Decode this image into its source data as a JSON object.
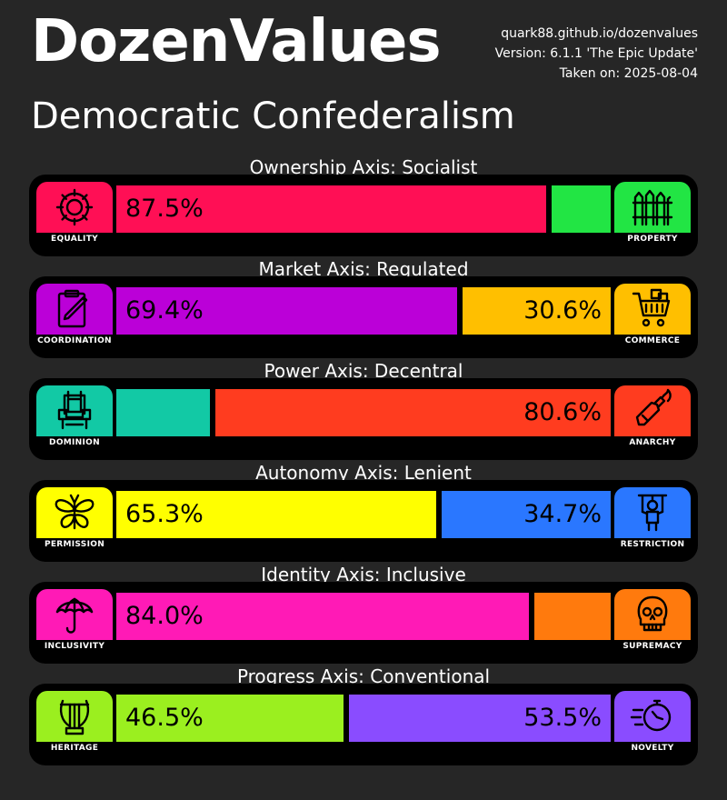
{
  "header": {
    "title": "DozenValues",
    "subtitle": "Democratic Confederalism",
    "site": "quark88.github.io/dozenvalues",
    "version": "Version: 6.1.1 'The Epic Update'",
    "taken": "Taken on: 2025-08-04"
  },
  "axes": [
    {
      "title": "Ownership Axis: Socialist",
      "left_label": "EQUALITY",
      "right_label": "PROPERTY",
      "left_icon": "gear-icon",
      "right_icon": "fence-icon",
      "left_color": "#ff0f55",
      "right_color": "#22e544",
      "left_value": 87.5,
      "right_value": 12.5,
      "left_text": "87.5%",
      "right_text": ""
    },
    {
      "title": "Market Axis: Regulated",
      "left_label": "COORDINATION",
      "right_label": "COMMERCE",
      "left_icon": "clipboard-icon",
      "right_icon": "shopping-cart-icon",
      "left_color": "#bb00d8",
      "right_color": "#ffbf00",
      "left_value": 69.4,
      "right_value": 30.6,
      "left_text": "69.4%",
      "right_text": "30.6%"
    },
    {
      "title": "Power Axis: Decentral",
      "left_label": "DOMINION",
      "right_label": "ANARCHY",
      "left_icon": "throne-icon",
      "right_icon": "molotov-icon",
      "left_color": "#12c9a5",
      "right_color": "#ff3c1f",
      "left_value": 19.4,
      "right_value": 80.6,
      "left_text": "",
      "right_text": "80.6%"
    },
    {
      "title": "Autonomy Axis: Lenient",
      "left_label": "PERMISSION",
      "right_label": "RESTRICTION",
      "left_icon": "butterfly-icon",
      "right_icon": "puppet-icon",
      "left_color": "#ffff00",
      "right_color": "#2a77ff",
      "left_value": 65.3,
      "right_value": 34.7,
      "left_text": "65.3%",
      "right_text": "34.7%"
    },
    {
      "title": "Identity Axis: Inclusive",
      "left_label": "INCLUSIVITY",
      "right_label": "SUPREMACY",
      "left_icon": "umbrella-icon",
      "right_icon": "skull-icon",
      "left_color": "#ff1ab6",
      "right_color": "#ff7a0d",
      "left_value": 84.0,
      "right_value": 16.0,
      "left_text": "84.0%",
      "right_text": ""
    },
    {
      "title": "Progress Axis: Conventional",
      "left_label": "HERITAGE",
      "right_label": "NOVELTY",
      "left_icon": "lyre-icon",
      "right_icon": "stopwatch-icon",
      "left_color": "#9bef1f",
      "right_color": "#8a4cff",
      "left_value": 46.5,
      "right_value": 53.5,
      "left_text": "46.5%",
      "right_text": "53.5%"
    }
  ]
}
